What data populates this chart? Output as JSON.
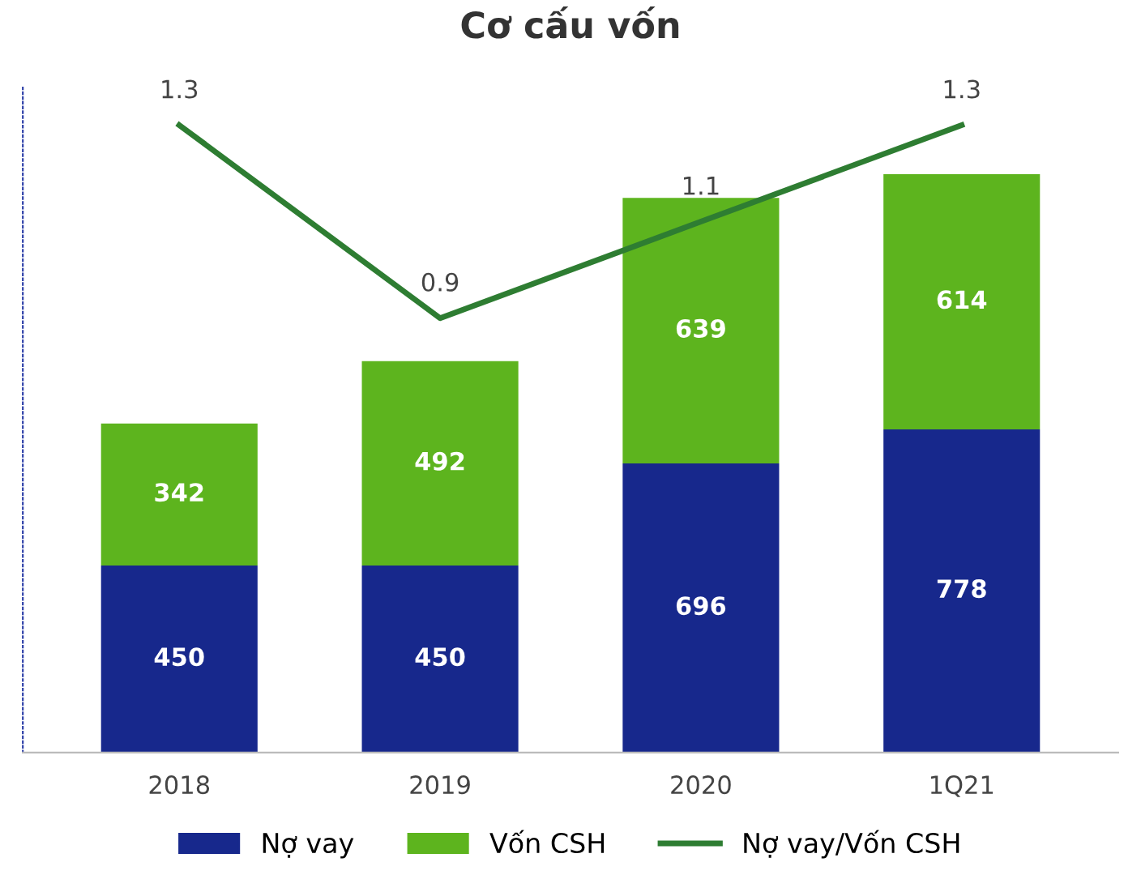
{
  "chart_data": {
    "type": "bar",
    "title": "Cơ cấu vốn",
    "categories": [
      "2018",
      "2019",
      "2020",
      "1Q21"
    ],
    "stacked": true,
    "data_labels": true,
    "tick_labels": "x",
    "grid": false,
    "legend": "bottom",
    "series": [
      {
        "name": "Nợ vay",
        "color": "#17288c",
        "values": [
          450,
          450,
          696,
          778
        ]
      },
      {
        "name": "Vốn CSH",
        "color": "#5db41e",
        "values": [
          342,
          492,
          639,
          614
        ]
      },
      {
        "name": "Nợ vay/Vốn CSH",
        "type": "line",
        "axis": "y2",
        "color": "#2e7d32",
        "line_style": "solid",
        "marker": "none",
        "values": [
          1.3,
          0.9,
          1.1,
          1.3
        ]
      }
    ]
  }
}
